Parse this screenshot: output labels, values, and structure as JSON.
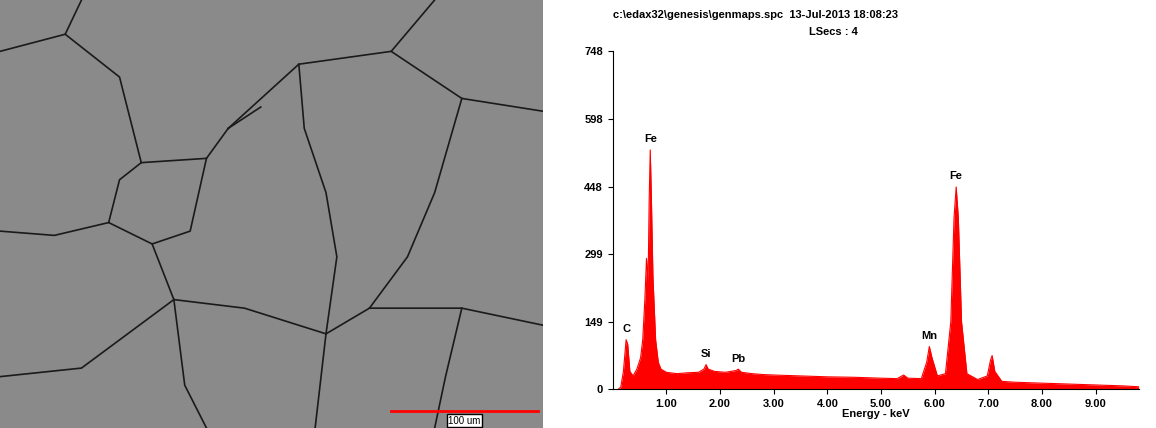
{
  "micrograph": {
    "scale_bar_label": "100 um"
  },
  "chart_data": {
    "type": "area",
    "header": "c:\\edax32\\genesis\\genmaps.spc  13-Jul-2013 18:08:23",
    "subheader": "LSecs : 4",
    "x_label": "Energy - keV",
    "color": "#ff0000",
    "x": [
      0.1,
      0.15,
      0.2,
      0.25,
      0.28,
      0.32,
      0.38,
      0.45,
      0.52,
      0.56,
      0.6,
      0.63,
      0.66,
      0.68,
      0.7,
      0.72,
      0.75,
      0.8,
      0.85,
      0.9,
      1.0,
      1.2,
      1.4,
      1.6,
      1.7,
      1.74,
      1.78,
      1.9,
      2.1,
      2.3,
      2.34,
      2.4,
      2.6,
      2.8,
      3.0,
      3.5,
      4.0,
      4.5,
      5.0,
      5.3,
      5.42,
      5.5,
      5.75,
      5.85,
      5.9,
      5.95,
      6.05,
      6.2,
      6.3,
      6.36,
      6.4,
      6.44,
      6.5,
      6.6,
      6.8,
      6.98,
      7.04,
      7.07,
      7.12,
      7.25,
      7.5,
      8.0,
      8.5,
      9.0,
      9.5,
      9.8
    ],
    "values": [
      0,
      5,
      40,
      110,
      100,
      40,
      30,
      45,
      70,
      110,
      200,
      290,
      240,
      420,
      530,
      430,
      250,
      110,
      60,
      45,
      38,
      35,
      37,
      38,
      45,
      55,
      45,
      40,
      38,
      42,
      45,
      38,
      35,
      33,
      32,
      30,
      28,
      27,
      25,
      24,
      32,
      25,
      24,
      60,
      95,
      70,
      30,
      35,
      150,
      380,
      448,
      380,
      150,
      35,
      22,
      30,
      65,
      75,
      40,
      18,
      16,
      14,
      12,
      10,
      8,
      6
    ],
    "annotations": [
      {
        "text": "C",
        "x": 0.25,
        "y": 110
      },
      {
        "text": "Fe",
        "x": 0.7,
        "y": 530
      },
      {
        "text": "Si",
        "x": 1.74,
        "y": 55
      },
      {
        "text": "Pb",
        "x": 2.34,
        "y": 45
      },
      {
        "text": "Mn",
        "x": 5.9,
        "y": 95
      },
      {
        "text": "Fe",
        "x": 6.4,
        "y": 448
      }
    ],
    "xlim": [
      0,
      9.8
    ],
    "ylim": [
      0,
      748
    ],
    "xticks": [
      {
        "value": 1,
        "label": "1.00"
      },
      {
        "value": 2,
        "label": "2.00"
      },
      {
        "value": 3,
        "label": "3.00"
      },
      {
        "value": 4,
        "label": "4.00"
      },
      {
        "value": 5,
        "label": "5.00"
      },
      {
        "value": 6,
        "label": "6.00"
      },
      {
        "value": 7,
        "label": "7.00"
      },
      {
        "value": 8,
        "label": "8.00"
      },
      {
        "value": 9,
        "label": "9.00"
      }
    ],
    "yticks": [
      0,
      149,
      299,
      448,
      598,
      748
    ]
  }
}
